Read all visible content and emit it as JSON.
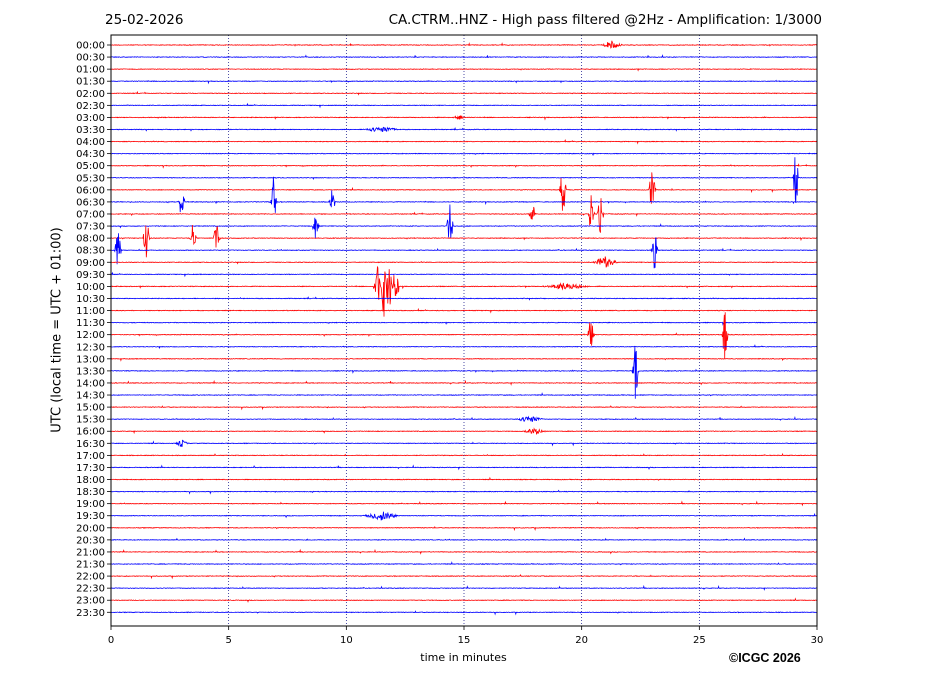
{
  "header": {
    "date": "25-02-2026",
    "title": "CA.CTRM..HNZ - High pass filtered @2Hz - Amplification: 1/3000"
  },
  "footer": {
    "copyright": "©ICGC 2026"
  },
  "colors": {
    "odd_trace": "#ff0000",
    "even_trace": "#0000ff",
    "axis": "#000000",
    "grid": "#000080"
  },
  "chart_data": {
    "type": "line",
    "title": "CA.CTRM..HNZ - High pass filtered @2Hz - Amplification: 1/3000",
    "xlabel": "time in minutes",
    "ylabel": "UTC (local time = UTC + 01:00)",
    "xlim": [
      0,
      30
    ],
    "xticks": [
      0,
      5,
      10,
      15,
      20,
      25,
      30
    ],
    "yticks": [
      "00:00",
      "00:30",
      "01:00",
      "01:30",
      "02:00",
      "02:30",
      "03:00",
      "03:30",
      "04:00",
      "04:30",
      "05:00",
      "05:30",
      "06:00",
      "06:30",
      "07:00",
      "07:30",
      "08:00",
      "08:30",
      "09:00",
      "09:30",
      "10:00",
      "10:30",
      "11:00",
      "11:30",
      "12:00",
      "12:30",
      "13:00",
      "13:30",
      "14:00",
      "14:30",
      "15:00",
      "15:30",
      "16:00",
      "16:30",
      "17:00",
      "17:30",
      "18:00",
      "18:30",
      "19:00",
      "19:30",
      "20:00",
      "20:30",
      "21:00",
      "21:30",
      "22:00",
      "22:30",
      "23:00",
      "23:30"
    ],
    "grid": "vertical dotted lines at 5-minute ticks",
    "trace_colors": [
      "red",
      "blue"
    ],
    "events": [
      {
        "row": "00:00",
        "minute": 21.3,
        "amp": 0.3,
        "width": 0.5
      },
      {
        "row": "03:00",
        "minute": 14.8,
        "amp": 0.2,
        "width": 0.3
      },
      {
        "row": "03:30",
        "minute": 11.5,
        "amp": 0.25,
        "width": 0.8
      },
      {
        "row": "05:30",
        "minute": 29.1,
        "amp": 2.5,
        "width": 0.15
      },
      {
        "row": "06:00",
        "minute": 19.2,
        "amp": 2.3,
        "width": 0.15
      },
      {
        "row": "06:00",
        "minute": 23.0,
        "amp": 2.3,
        "width": 0.15
      },
      {
        "row": "06:30",
        "minute": 6.9,
        "amp": 2.3,
        "width": 0.15
      },
      {
        "row": "06:30",
        "minute": 3.0,
        "amp": 1.5,
        "width": 0.15
      },
      {
        "row": "06:30",
        "minute": 9.4,
        "amp": 1.2,
        "width": 0.15
      },
      {
        "row": "07:00",
        "minute": 20.8,
        "amp": 1.8,
        "width": 0.15
      },
      {
        "row": "07:00",
        "minute": 20.4,
        "amp": 1.6,
        "width": 0.15
      },
      {
        "row": "07:00",
        "minute": 17.9,
        "amp": 1.0,
        "width": 0.15
      },
      {
        "row": "07:30",
        "minute": 14.4,
        "amp": 2.0,
        "width": 0.15
      },
      {
        "row": "07:30",
        "minute": 8.7,
        "amp": 1.5,
        "width": 0.15
      },
      {
        "row": "08:00",
        "minute": 1.5,
        "amp": 2.0,
        "width": 0.15
      },
      {
        "row": "08:00",
        "minute": 4.5,
        "amp": 2.0,
        "width": 0.15
      },
      {
        "row": "08:00",
        "minute": 3.5,
        "amp": 1.5,
        "width": 0.15
      },
      {
        "row": "08:30",
        "minute": 0.3,
        "amp": 2.0,
        "width": 0.15
      },
      {
        "row": "08:30",
        "minute": 23.1,
        "amp": 1.8,
        "width": 0.15
      },
      {
        "row": "09:00",
        "minute": 21.0,
        "amp": 0.5,
        "width": 0.6
      },
      {
        "row": "10:00",
        "minute": 11.3,
        "amp": 2.8,
        "width": 0.15
      },
      {
        "row": "10:00",
        "minute": 11.6,
        "amp": 3.0,
        "width": 0.15
      },
      {
        "row": "10:00",
        "minute": 11.8,
        "amp": 2.6,
        "width": 0.15
      },
      {
        "row": "10:00",
        "minute": 12.1,
        "amp": 2.5,
        "width": 0.15
      },
      {
        "row": "10:00",
        "minute": 19.3,
        "amp": 0.3,
        "width": 1.0
      },
      {
        "row": "12:00",
        "minute": 20.4,
        "amp": 1.8,
        "width": 0.15
      },
      {
        "row": "12:00",
        "minute": 26.1,
        "amp": 2.5,
        "width": 0.15
      },
      {
        "row": "13:30",
        "minute": 22.3,
        "amp": 2.8,
        "width": 0.15
      },
      {
        "row": "15:30",
        "minute": 17.8,
        "amp": 0.3,
        "width": 0.6
      },
      {
        "row": "16:00",
        "minute": 18.0,
        "amp": 0.3,
        "width": 0.5
      },
      {
        "row": "16:30",
        "minute": 3.0,
        "amp": 0.3,
        "width": 0.3
      },
      {
        "row": "19:30",
        "minute": 11.5,
        "amp": 0.4,
        "width": 0.8
      }
    ]
  }
}
